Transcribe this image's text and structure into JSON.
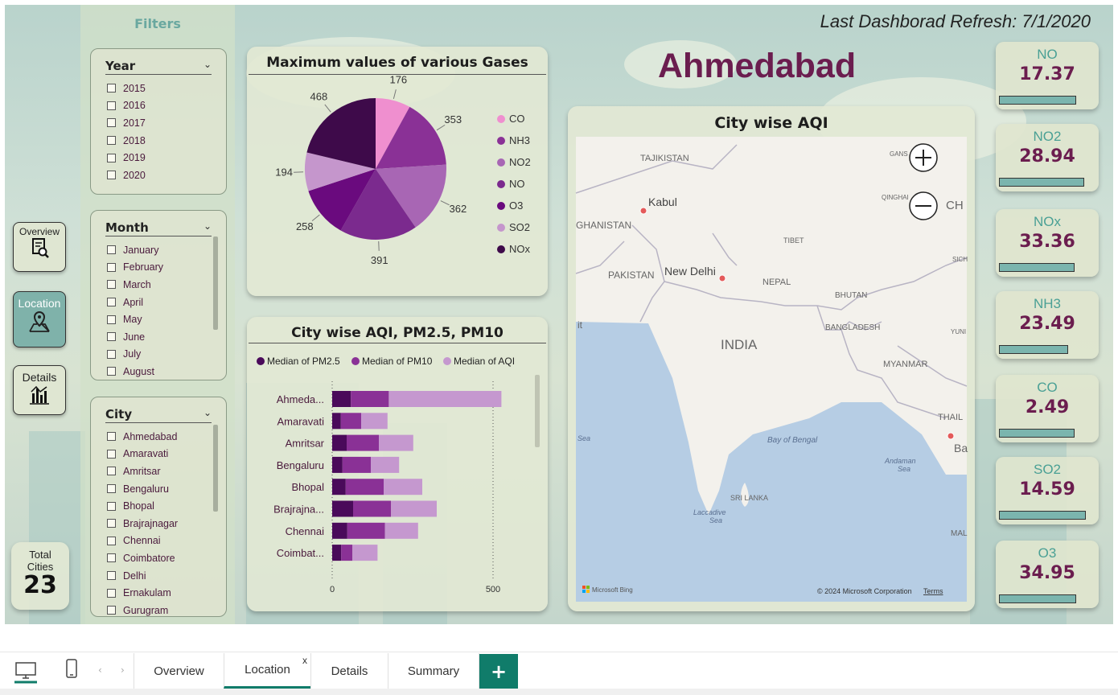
{
  "header": {
    "refresh_label": "Last Dashborad Refresh: 7/1/2020",
    "city_name": "Ahmedabad"
  },
  "filters": {
    "title": "Filters",
    "year": {
      "label": "Year",
      "items": [
        "2015",
        "2016",
        "2017",
        "2018",
        "2019",
        "2020"
      ]
    },
    "month": {
      "label": "Month",
      "items": [
        "January",
        "February",
        "March",
        "April",
        "May",
        "June",
        "July",
        "August"
      ]
    },
    "city": {
      "label": "City",
      "items": [
        "Ahmedabad",
        "Amaravati",
        "Amritsar",
        "Bengaluru",
        "Bhopal",
        "Brajrajnagar",
        "Chennai",
        "Coimbatore",
        "Delhi",
        "Ernakulam",
        "Gurugram"
      ]
    }
  },
  "nav": {
    "overview": "Overview",
    "location": "Location",
    "details": "Details"
  },
  "total_cities": {
    "label_line1": "Total",
    "label_line2": "Cities",
    "value": "23"
  },
  "pie": {
    "title": "Maximum values of various Gases",
    "legend": [
      "CO",
      "NH3",
      "NO2",
      "NO",
      "O3",
      "SO2",
      "NOx"
    ]
  },
  "map": {
    "title": "City wise AQI",
    "labels": {
      "tajikistan": "TAJIKISTAN",
      "kabul": "Kabul",
      "ghanistan": "GHANISTAN",
      "pakistan": "PAKISTAN",
      "newdelhi": "New Delhi",
      "tibet": "TIBET",
      "nepal": "NEPAL",
      "bhutan": "BHUTAN",
      "bangladesh": "BANGLADESH",
      "india": "INDIA",
      "myanmar": "MYANMAR",
      "thail": "THAIL",
      "bayofbengal": "Bay of Bengal",
      "andaman1": "Andaman",
      "andaman2": "Sea",
      "srilanka": "SRI LANKA",
      "laccadive1": "Laccadive",
      "laccadive2": "Sea",
      "sea": "Sea",
      "gans": "GANS",
      "qinghai": "QINGHAI",
      "ch": "CH",
      "sich": "SICH",
      "yun": "YUNI",
      "mal": "MAL",
      "ba": "Ba",
      "it": "it"
    },
    "attribution": "© 2024 Microsoft Corporation",
    "terms": "Terms",
    "bing": "Microsoft Bing"
  },
  "kpis": [
    {
      "name": "NO",
      "value": "17.37",
      "fraction": 0.8
    },
    {
      "name": "NO2",
      "value": "28.94",
      "fraction": 0.88
    },
    {
      "name": "NOx",
      "value": "33.36",
      "fraction": 0.78
    },
    {
      "name": "NH3",
      "value": "23.49",
      "fraction": 0.72
    },
    {
      "name": "CO",
      "value": "2.49",
      "fraction": 0.78
    },
    {
      "name": "SO2",
      "value": "14.59",
      "fraction": 0.9
    },
    {
      "name": "O3",
      "value": "34.95",
      "fraction": 0.8
    }
  ],
  "tabs": {
    "overview": "Overview",
    "location": "Location",
    "close": "x",
    "details": "Details",
    "summary": "Summary",
    "add": "+"
  },
  "colors": {
    "co": "#ef8fcf",
    "nh3": "#8a3196",
    "no2": "#a866b4",
    "no": "#7b2a8e",
    "o3": "#6a0a7e",
    "so2": "#c596cc",
    "nox": "#3e0a4a",
    "pm25": "#4a0a5a",
    "pm10": "#8a3196",
    "aqi": "#c598cf"
  },
  "chart_data": [
    {
      "type": "pie",
      "title": "Maximum values of various Gases",
      "categories": [
        "CO",
        "NH3",
        "NO2",
        "NO",
        "O3",
        "SO2",
        "NOx"
      ],
      "values": [
        176,
        353,
        362,
        391,
        258,
        194,
        468
      ]
    },
    {
      "type": "bar",
      "orientation": "horizontal",
      "stacked": true,
      "title": "City wise AQI, PM2.5, PM10",
      "categories": [
        "Ahmeda...",
        "Amaravati",
        "Amritsar",
        "Bengaluru",
        "Bhopal",
        "Brajrajna...",
        "Chennai",
        "Coimbat..."
      ],
      "series": [
        {
          "name": "Median of PM2.5",
          "values": [
            58,
            27,
            45,
            32,
            42,
            65,
            47,
            28
          ]
        },
        {
          "name": "Median of PM10",
          "values": [
            118,
            63,
            100,
            88,
            118,
            118,
            117,
            35
          ]
        },
        {
          "name": "Median of AQI",
          "values": [
            350,
            82,
            107,
            88,
            120,
            142,
            103,
            78
          ]
        }
      ],
      "xticks": [
        "0",
        "500"
      ],
      "xlim": [
        0,
        600
      ],
      "legend": "top"
    }
  ]
}
